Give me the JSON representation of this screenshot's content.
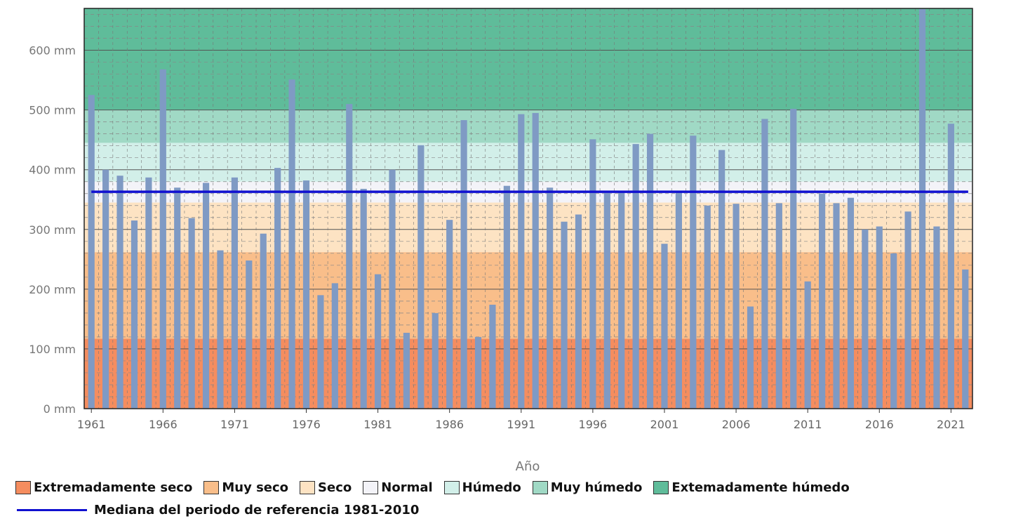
{
  "chart_data": {
    "type": "bar",
    "xlabel": "Año",
    "ylabel": "",
    "ylim": [
      0,
      670
    ],
    "y_ticks": [
      0,
      100,
      200,
      300,
      400,
      500,
      600
    ],
    "y_tick_labels": [
      "0 mm",
      "100 mm",
      "200 mm",
      "300 mm",
      "400 mm",
      "500 mm",
      "600 mm"
    ],
    "x_tick_labels": [
      "1961",
      "1966",
      "1971",
      "1976",
      "1981",
      "1986",
      "1991",
      "1996",
      "2001",
      "2006",
      "2011",
      "2016",
      "2021"
    ],
    "categories": [
      "1961",
      "1962",
      "1963",
      "1964",
      "1965",
      "1966",
      "1967",
      "1968",
      "1969",
      "1970",
      "1971",
      "1972",
      "1973",
      "1974",
      "1975",
      "1976",
      "1977",
      "1978",
      "1979",
      "1980",
      "1981",
      "1982",
      "1983",
      "1984",
      "1985",
      "1986",
      "1987",
      "1988",
      "1989",
      "1990",
      "1991",
      "1992",
      "1993",
      "1994",
      "1995",
      "1996",
      "1997",
      "1998",
      "1999",
      "2000",
      "2001",
      "2002",
      "2003",
      "2004",
      "2005",
      "2006",
      "2007",
      "2008",
      "2009",
      "2010",
      "2011",
      "2012",
      "2013",
      "2014",
      "2015",
      "2016",
      "2017",
      "2018",
      "2019",
      "2020",
      "2021",
      "2022"
    ],
    "values": [
      525,
      400,
      390,
      315,
      387,
      568,
      370,
      319,
      378,
      265,
      387,
      248,
      293,
      403,
      551,
      382,
      190,
      210,
      510,
      368,
      225,
      400,
      127,
      441,
      160,
      316,
      483,
      120,
      174,
      373,
      493,
      495,
      370,
      313,
      325,
      451,
      361,
      362,
      443,
      460,
      276,
      365,
      457,
      340,
      433,
      343,
      171,
      485,
      344,
      502,
      213,
      360,
      344,
      353,
      300,
      305,
      260,
      330,
      669,
      305,
      477,
      233
    ],
    "bar_color": "#7f9ac4",
    "median": {
      "value": 363,
      "color": "#1010d0",
      "label": "Mediana del periodo de referencia 1981-2010"
    },
    "bands": [
      {
        "label": "Extremadamente seco",
        "from": 0,
        "to": 117,
        "color": "#f58d5f"
      },
      {
        "label": "Muy seco",
        "from": 117,
        "to": 262,
        "color": "#f9be8a"
      },
      {
        "label": "Seco",
        "from": 262,
        "to": 345,
        "color": "#fde3c3"
      },
      {
        "label": "Normal",
        "from": 345,
        "to": 380,
        "color": "#f3f3f8"
      },
      {
        "label": "Húmedo",
        "from": 380,
        "to": 445,
        "color": "#d2efe9"
      },
      {
        "label": "Muy húmedo",
        "from": 445,
        "to": 500,
        "color": "#a0d9c5"
      },
      {
        "label": "Extemadamente húmedo",
        "from": 500,
        "to": 670,
        "color": "#5fbc9a"
      }
    ],
    "grid": true,
    "legend_position": "bottom"
  }
}
